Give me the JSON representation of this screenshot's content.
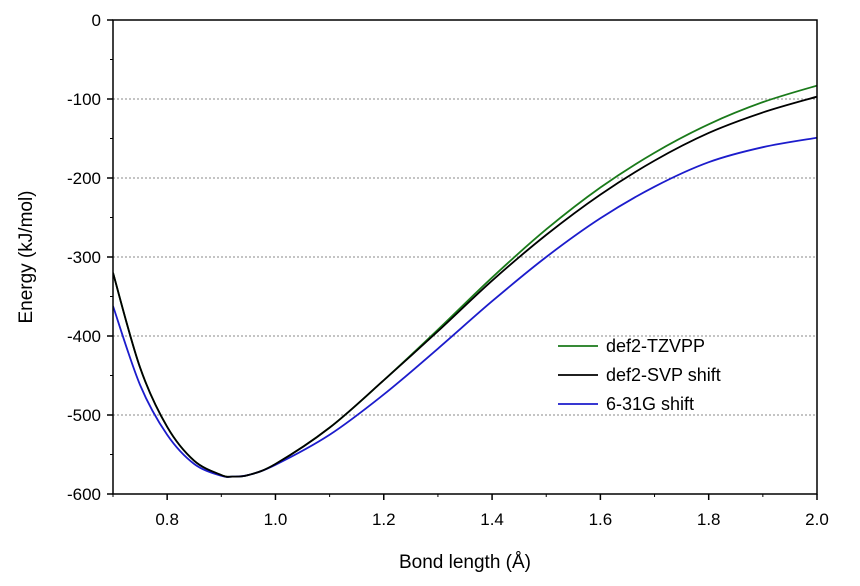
{
  "chart_data": {
    "type": "line",
    "xlabel": "Bond length (Å)",
    "ylabel": "Energy (kJ/mol)",
    "xlim": [
      0.7,
      2.0
    ],
    "ylim": [
      -600,
      0
    ],
    "xticks": [
      0.8,
      1.0,
      1.2,
      1.4,
      1.6,
      1.8,
      2.0
    ],
    "xtick_labels": [
      "0.8",
      "1.0",
      "1.2",
      "1.4",
      "1.6",
      "1.8",
      "2.0"
    ],
    "yticks": [
      0,
      -100,
      -200,
      -300,
      -400,
      -500,
      -600
    ],
    "ytick_labels": [
      "0",
      "-100",
      "-200",
      "-300",
      "-400",
      "-500",
      "-600"
    ],
    "grid": "horizontal-dashed",
    "legend_position": "center-right",
    "series": [
      {
        "name": "def2-TZVPP",
        "color": "#1a7a1a",
        "x": [
          0.7,
          0.75,
          0.8,
          0.85,
          0.9,
          0.92,
          0.95,
          1.0,
          1.1,
          1.2,
          1.3,
          1.4,
          1.5,
          1.6,
          1.7,
          1.8,
          1.9,
          2.0
        ],
        "y": [
          -320,
          -440,
          -515,
          -558,
          -576,
          -578,
          -576,
          -562,
          -516,
          -456,
          -392,
          -326,
          -265,
          -212,
          -168,
          -132,
          -104,
          -83
        ]
      },
      {
        "name": "def2-SVP shift",
        "color": "#000000",
        "x": [
          0.7,
          0.75,
          0.8,
          0.85,
          0.9,
          0.92,
          0.95,
          1.0,
          1.1,
          1.2,
          1.3,
          1.4,
          1.5,
          1.6,
          1.7,
          1.8,
          1.9,
          2.0
        ],
        "y": [
          -320,
          -440,
          -515,
          -558,
          -576,
          -578,
          -576,
          -562,
          -516,
          -456,
          -394,
          -330,
          -272,
          -221,
          -178,
          -143,
          -117,
          -97
        ]
      },
      {
        "name": "6-31G shift",
        "color": "#1c1ccc",
        "x": [
          0.7,
          0.75,
          0.8,
          0.85,
          0.9,
          0.92,
          0.95,
          1.0,
          1.1,
          1.2,
          1.3,
          1.4,
          1.5,
          1.6,
          1.7,
          1.8,
          1.9,
          2.0
        ],
        "y": [
          -362,
          -462,
          -525,
          -562,
          -577,
          -578,
          -576,
          -563,
          -525,
          -474,
          -416,
          -356,
          -300,
          -251,
          -211,
          -180,
          -161,
          -149
        ]
      }
    ]
  }
}
